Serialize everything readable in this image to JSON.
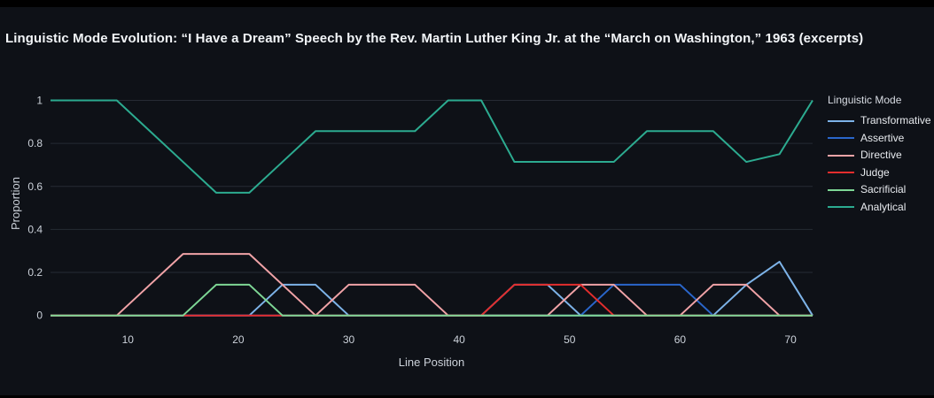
{
  "title": "Linguistic Mode Evolution: “I Have a Dream” Speech by the Rev. Martin Luther King Jr. at the “March on Washington,” 1963 (excerpts)",
  "colors": {
    "page_background": "#000000",
    "chart_background": "#0e1117",
    "gridline": "#262b34",
    "title_text": "#f2f5f8",
    "axis_text": "#ccd2da",
    "legend_text": "#e8ebef",
    "legend_title_text": "#d9dde4"
  },
  "chart_data": {
    "type": "line",
    "title": "Linguistic Mode Evolution: “I Have a Dream” Speech by the Rev. Martin Luther King Jr. at the “March on Washington,” 1963 (excerpts)",
    "xlabel": "Line Position",
    "ylabel": "Proportion",
    "legend_title": "Linguistic Mode",
    "legend_position": "right",
    "grid": "horizontal-only",
    "xlim": [
      3,
      72
    ],
    "ylim": [
      0,
      1
    ],
    "xticks": [
      10,
      20,
      30,
      40,
      50,
      60,
      70
    ],
    "yticks": [
      0,
      0.2,
      0.4,
      0.6,
      0.8,
      1
    ],
    "ytick_labels": [
      "0",
      "0.2",
      "0.4",
      "0.6",
      "0.8",
      "1"
    ],
    "x": [
      3,
      6,
      9,
      12,
      15,
      18,
      21,
      24,
      27,
      30,
      33,
      36,
      39,
      42,
      45,
      48,
      51,
      54,
      57,
      60,
      63,
      66,
      69,
      72
    ],
    "series": [
      {
        "name": "Transformative",
        "color": "#7db3e8",
        "values": [
          0,
          0,
          0,
          0,
          0,
          0,
          0,
          0.143,
          0.143,
          0,
          0,
          0,
          0,
          0,
          0.143,
          0.143,
          0,
          0,
          0,
          0,
          0,
          0.143,
          0.25,
          0
        ]
      },
      {
        "name": "Assertive",
        "color": "#2a66cb",
        "values": [
          0,
          0,
          0,
          0,
          0,
          0,
          0,
          0,
          0,
          0,
          0,
          0,
          0,
          0,
          0,
          0,
          0,
          0.143,
          0.143,
          0.143,
          0,
          0,
          0,
          0
        ]
      },
      {
        "name": "Directive",
        "color": "#f1a3a7",
        "values": [
          0,
          0,
          0,
          0.143,
          0.286,
          0.286,
          0.286,
          0.143,
          0,
          0.143,
          0.143,
          0.143,
          0,
          0,
          0,
          0,
          0.143,
          0.143,
          0,
          0,
          0.143,
          0.143,
          0,
          0
        ]
      },
      {
        "name": "Judge",
        "color": "#e32d2d",
        "values": [
          0,
          0,
          0,
          0,
          0,
          0,
          0,
          0,
          0,
          0,
          0,
          0,
          0,
          0,
          0.143,
          0.143,
          0.143,
          0,
          0,
          0,
          0,
          0,
          0,
          0
        ]
      },
      {
        "name": "Sacrificial",
        "color": "#7ed795",
        "values": [
          0,
          0,
          0,
          0,
          0,
          0.143,
          0.143,
          0,
          0,
          0,
          0,
          0,
          0,
          0,
          0,
          0,
          0,
          0,
          0,
          0,
          0,
          0,
          0,
          0
        ]
      },
      {
        "name": "Analytical",
        "color": "#2cab90",
        "values": [
          1,
          1,
          1,
          0.857,
          0.714,
          0.571,
          0.571,
          0.714,
          0.857,
          0.857,
          0.857,
          0.857,
          1,
          1,
          0.714,
          0.714,
          0.714,
          0.714,
          0.857,
          0.857,
          0.857,
          0.714,
          0.75,
          1
        ]
      }
    ]
  }
}
